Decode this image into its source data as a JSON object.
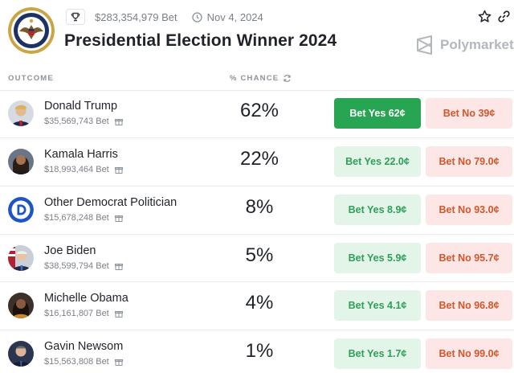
{
  "header": {
    "volume": "$283,354,979 Bet",
    "date": "Nov 4, 2024",
    "title": "Presidential Election Winner 2024",
    "brand": "Polymarket"
  },
  "columns": {
    "outcome": "OUTCOME",
    "chance": "% CHANCE"
  },
  "colors": {
    "yes_active": "#27a552",
    "yes_bg": "#e3f5e9",
    "yes_text": "#2f9e57",
    "no_bg": "#fde6e6",
    "no_text": "#d2572a"
  },
  "outcomes": [
    {
      "name": "Donald Trump",
      "bet": "$35,569,743 Bet",
      "chance": "62%",
      "yes": "Bet Yes 62¢",
      "no": "Bet No 39¢"
    },
    {
      "name": "Kamala Harris",
      "bet": "$18,993,464 Bet",
      "chance": "22%",
      "yes": "Bet Yes 22.0¢",
      "no": "Bet No 79.0¢"
    },
    {
      "name": "Other Democrat Politician",
      "bet": "$15,678,248 Bet",
      "chance": "8%",
      "yes": "Bet Yes 8.9¢",
      "no": "Bet No 93.0¢"
    },
    {
      "name": "Joe Biden",
      "bet": "$38,599,794 Bet",
      "chance": "5%",
      "yes": "Bet Yes 5.9¢",
      "no": "Bet No 95.7¢"
    },
    {
      "name": "Michelle Obama",
      "bet": "$16,161,807 Bet",
      "chance": "4%",
      "yes": "Bet Yes 4.1¢",
      "no": "Bet No 96.8¢"
    },
    {
      "name": "Gavin Newsom",
      "bet": "$15,563,808 Bet",
      "chance": "1%",
      "yes": "Bet Yes 1.7¢",
      "no": "Bet No 99.0¢"
    }
  ]
}
